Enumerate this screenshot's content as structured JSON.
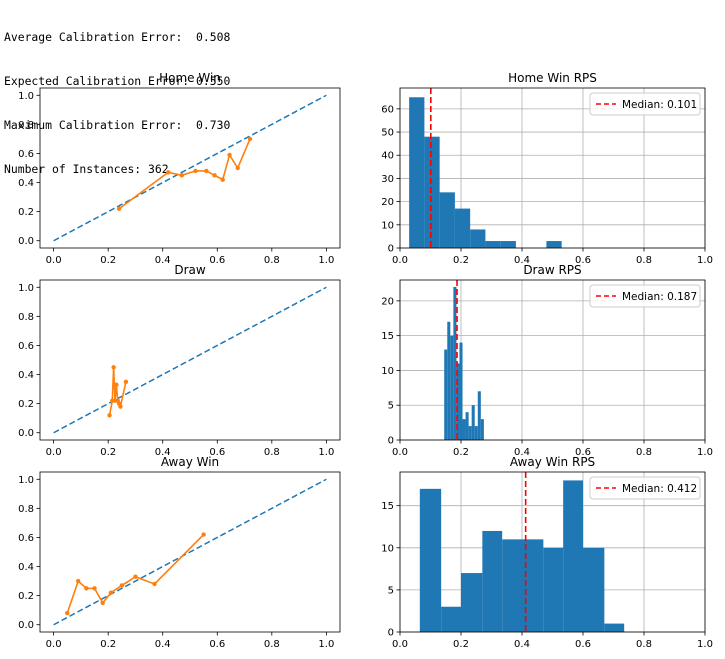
{
  "stats": [
    "Average Calibration Error:  0.508",
    "Expected Calibration Error: 0.550",
    "Maximum Calibration Error:  0.730",
    "Number of Instances: 362"
  ],
  "colors": {
    "diag": "#1f77b4",
    "calib": "#ff7f0e",
    "bar": "#1f77b4",
    "median": "#ff0000"
  },
  "chart_data": [
    {
      "type": "line",
      "title": "Home Win",
      "xlim": [
        -0.05,
        1.05
      ],
      "ylim": [
        -0.05,
        1.05
      ],
      "xticks": [
        "0.0",
        "0.2",
        "0.4",
        "0.6",
        "0.8",
        "1.0"
      ],
      "yticks": [
        "0.0",
        "0.2",
        "0.4",
        "0.6",
        "0.8",
        "1.0"
      ],
      "grid": false,
      "diagonal": [
        [
          0,
          0
        ],
        [
          1,
          1
        ]
      ],
      "series": [
        {
          "x": [
            0.24,
            0.42,
            0.47,
            0.52,
            0.56,
            0.59,
            0.62,
            0.645,
            0.675,
            0.72
          ],
          "y": [
            0.22,
            0.47,
            0.45,
            0.48,
            0.48,
            0.45,
            0.42,
            0.59,
            0.5,
            0.7
          ]
        }
      ]
    },
    {
      "type": "bar",
      "title": "Home Win RPS",
      "xlim": [
        0.0,
        1.0
      ],
      "ylim": [
        0,
        69
      ],
      "xticks": [
        "0.0",
        "0.2",
        "0.4",
        "0.6",
        "0.8",
        "1.0"
      ],
      "yticks": [
        "0",
        "10",
        "20",
        "30",
        "40",
        "50",
        "60"
      ],
      "grid": true,
      "bins": [
        [
          0.03,
          0.08,
          65
        ],
        [
          0.08,
          0.13,
          48
        ],
        [
          0.13,
          0.18,
          24
        ],
        [
          0.18,
          0.23,
          17
        ],
        [
          0.23,
          0.28,
          8
        ],
        [
          0.28,
          0.33,
          3
        ],
        [
          0.33,
          0.38,
          3
        ],
        [
          0.48,
          0.53,
          3
        ]
      ],
      "median": 0.101,
      "legend": "Median: 0.101",
      "legend_loc": "top-right"
    },
    {
      "type": "line",
      "title": "Draw",
      "xlim": [
        -0.05,
        1.05
      ],
      "ylim": [
        -0.05,
        1.05
      ],
      "xticks": [
        "0.0",
        "0.2",
        "0.4",
        "0.6",
        "0.8",
        "1.0"
      ],
      "yticks": [
        "0.0",
        "0.2",
        "0.4",
        "0.6",
        "0.8",
        "1.0"
      ],
      "grid": false,
      "diagonal": [
        [
          0,
          0
        ],
        [
          1,
          1
        ]
      ],
      "series": [
        {
          "x": [
            0.205,
            0.215,
            0.22,
            0.225,
            0.23,
            0.235,
            0.24,
            0.245,
            0.265
          ],
          "y": [
            0.12,
            0.22,
            0.45,
            0.22,
            0.33,
            0.22,
            0.2,
            0.18,
            0.35
          ]
        }
      ]
    },
    {
      "type": "bar",
      "title": "Draw RPS",
      "xlim": [
        0.0,
        1.0
      ],
      "ylim": [
        0,
        23
      ],
      "xticks": [
        "0.0",
        "0.2",
        "0.4",
        "0.6",
        "0.8",
        "1.0"
      ],
      "yticks": [
        "0",
        "5",
        "10",
        "15",
        "20"
      ],
      "grid": true,
      "bins": [
        [
          0.145,
          0.155,
          13
        ],
        [
          0.155,
          0.165,
          17
        ],
        [
          0.165,
          0.175,
          15
        ],
        [
          0.175,
          0.185,
          22
        ],
        [
          0.185,
          0.195,
          11
        ],
        [
          0.195,
          0.205,
          14
        ],
        [
          0.205,
          0.215,
          3
        ],
        [
          0.215,
          0.225,
          4
        ],
        [
          0.225,
          0.235,
          2
        ],
        [
          0.235,
          0.245,
          5
        ],
        [
          0.245,
          0.255,
          2
        ],
        [
          0.255,
          0.265,
          7
        ],
        [
          0.265,
          0.275,
          3
        ]
      ],
      "median": 0.187,
      "legend": "Median: 0.187",
      "legend_loc": "top-right"
    },
    {
      "type": "line",
      "title": "Away Win",
      "xlim": [
        -0.05,
        1.05
      ],
      "ylim": [
        -0.05,
        1.05
      ],
      "xticks": [
        "0.0",
        "0.2",
        "0.4",
        "0.6",
        "0.8",
        "1.0"
      ],
      "yticks": [
        "0.0",
        "0.2",
        "0.4",
        "0.6",
        "0.8",
        "1.0"
      ],
      "grid": false,
      "diagonal": [
        [
          0,
          0
        ],
        [
          1,
          1
        ]
      ],
      "series": [
        {
          "x": [
            0.05,
            0.09,
            0.12,
            0.15,
            0.18,
            0.21,
            0.25,
            0.3,
            0.37,
            0.55
          ],
          "y": [
            0.08,
            0.3,
            0.25,
            0.25,
            0.15,
            0.22,
            0.27,
            0.33,
            0.28,
            0.62
          ]
        }
      ]
    },
    {
      "type": "bar",
      "title": "Away Win RPS",
      "xlim": [
        0.0,
        1.0
      ],
      "ylim": [
        0,
        19
      ],
      "xticks": [
        "0.0",
        "0.2",
        "0.4",
        "0.6",
        "0.8",
        "1.0"
      ],
      "yticks": [
        "0",
        "5",
        "10",
        "15"
      ],
      "grid": true,
      "bins": [
        [
          0.065,
          0.135,
          17
        ],
        [
          0.135,
          0.2,
          3
        ],
        [
          0.2,
          0.27,
          7
        ],
        [
          0.27,
          0.335,
          12
        ],
        [
          0.335,
          0.4,
          11
        ],
        [
          0.4,
          0.47,
          11
        ],
        [
          0.47,
          0.535,
          10
        ],
        [
          0.535,
          0.6,
          18
        ],
        [
          0.6,
          0.67,
          10
        ],
        [
          0.67,
          0.735,
          1
        ]
      ],
      "median": 0.412,
      "legend": "Median: 0.412",
      "legend_loc": "top-right"
    }
  ]
}
